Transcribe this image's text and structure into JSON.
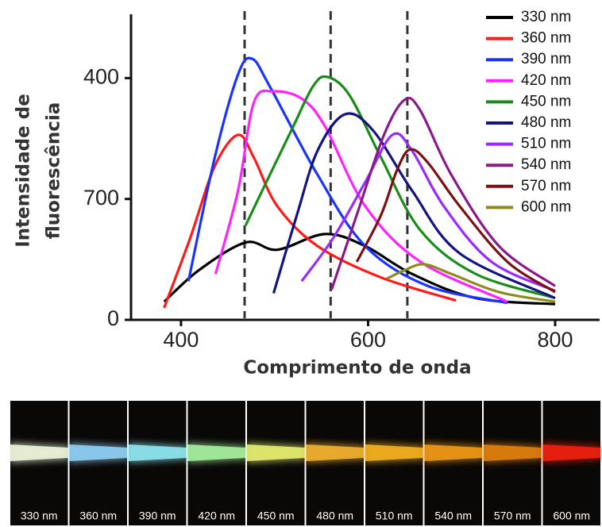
{
  "chart_data": {
    "type": "line",
    "x_label": "Comprimento de onda",
    "y_label": [
      "Intensidade de",
      "fluorescência"
    ],
    "xlim": [
      350,
      845
    ],
    "ylim": [
      0,
      2.6
    ],
    "xticks": [
      400,
      600,
      800
    ],
    "yticks": [
      0,
      {
        "value": 1,
        "label": "700"
      },
      {
        "value": 2,
        "label": "400"
      }
    ],
    "dashed_lines": [
      468,
      560,
      642
    ],
    "legend": "upper right",
    "series": [
      {
        "name": "330 nm",
        "color": "#000000",
        "x": [
          382,
          419,
          469,
          503,
          554,
          597,
          647,
          715,
          800
        ],
        "values": [
          0.15,
          0.41,
          0.64,
          0.58,
          0.71,
          0.61,
          0.38,
          0.18,
          0.13
        ]
      },
      {
        "name": "360 nm",
        "color": "#ff1a1a",
        "x": [
          382,
          410,
          436,
          461,
          478,
          503,
          546,
          614,
          694
        ],
        "values": [
          0.1,
          0.68,
          1.27,
          1.53,
          1.34,
          0.94,
          0.61,
          0.35,
          0.16
        ]
      },
      {
        "name": "390 nm",
        "color": "#1a33ff",
        "x": [
          408,
          436,
          461,
          476,
          495,
          546,
          597,
          664,
          749
        ],
        "values": [
          0.32,
          1.34,
          2.03,
          2.16,
          1.93,
          1.2,
          0.61,
          0.28,
          0.14
        ]
      },
      {
        "name": "420 nm",
        "color": "#ff22ff",
        "x": [
          437,
          461,
          478,
          499,
          529,
          554,
          597,
          656,
          749
        ],
        "values": [
          0.38,
          1.07,
          1.8,
          1.89,
          1.83,
          1.6,
          0.94,
          0.48,
          0.15
        ]
      },
      {
        "name": "450 nm",
        "color": "#1a8c1a",
        "x": [
          469,
          495,
          520,
          541,
          556,
          580,
          614,
          656,
          715,
          800
        ],
        "values": [
          0.78,
          1.2,
          1.6,
          1.93,
          2.01,
          1.86,
          1.34,
          0.74,
          0.38,
          0.18
        ]
      },
      {
        "name": "480 nm",
        "color": "#141480",
        "x": [
          499,
          524,
          546,
          575,
          605,
          647,
          698,
          800
        ],
        "values": [
          0.22,
          0.87,
          1.4,
          1.7,
          1.57,
          1.07,
          0.55,
          0.18
        ]
      },
      {
        "name": "510 nm",
        "color": "#9a2bff",
        "x": [
          529,
          563,
          597,
          626,
          647,
          681,
          732,
          800
        ],
        "values": [
          0.32,
          0.68,
          1.14,
          1.53,
          1.4,
          0.94,
          0.48,
          0.24
        ]
      },
      {
        "name": "540 nm",
        "color": "#8a1a8a",
        "x": [
          561,
          588,
          617,
          639,
          656,
          689,
          740,
          800
        ],
        "values": [
          0.25,
          0.87,
          1.53,
          1.82,
          1.73,
          1.2,
          0.61,
          0.28
        ]
      },
      {
        "name": "570 nm",
        "color": "#7a1010",
        "x": [
          588,
          614,
          631,
          645,
          664,
          698,
          749,
          800
        ],
        "values": [
          0.48,
          0.87,
          1.24,
          1.41,
          1.3,
          0.94,
          0.48,
          0.23
        ]
      },
      {
        "name": "600 nm",
        "color": "#8c8c1e",
        "x": [
          620,
          639,
          660,
          689,
          740,
          800
        ],
        "values": [
          0.34,
          0.41,
          0.46,
          0.38,
          0.23,
          0.15
        ]
      }
    ]
  },
  "image_strip": [
    {
      "label": "330 nm",
      "color": "#eef6dc"
    },
    {
      "label": "360 nm",
      "color": "#8fd0f5"
    },
    {
      "label": "390 nm",
      "color": "#8ee6ee"
    },
    {
      "label": "420 nm",
      "color": "#a6f0a0"
    },
    {
      "label": "450 nm",
      "color": "#e6ee70"
    },
    {
      "label": "480 nm",
      "color": "#f2b030"
    },
    {
      "label": "510 nm",
      "color": "#f5b020"
    },
    {
      "label": "540 nm",
      "color": "#f09818"
    },
    {
      "label": "570 nm",
      "color": "#e08010"
    },
    {
      "label": "600 nm",
      "color": "#ee2010"
    }
  ]
}
